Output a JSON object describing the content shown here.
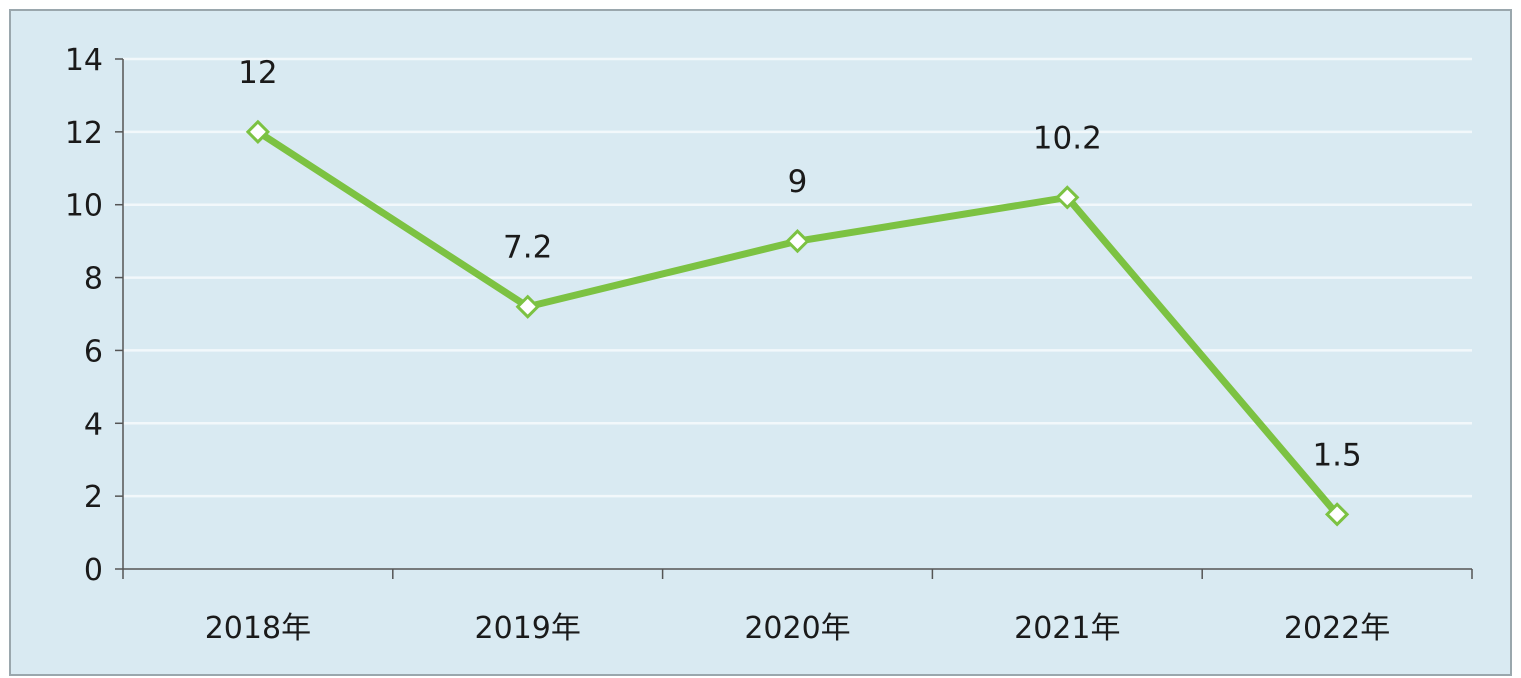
{
  "chart_data": {
    "type": "line",
    "categories": [
      "2018年",
      "2019年",
      "2020年",
      "2021年",
      "2022年"
    ],
    "series": [
      {
        "values": [
          12,
          7.2,
          9,
          10.2,
          1.5
        ],
        "data_labels": [
          "12",
          "7.2",
          "9",
          "10.2",
          "1.5"
        ],
        "color": "#7cc242"
      }
    ],
    "y_ticks": [
      "0",
      "2",
      "4",
      "6",
      "8",
      "10",
      "12",
      "14"
    ],
    "ylim": [
      0,
      14
    ],
    "grid": true,
    "legend": "none",
    "colors": {
      "background": "#d9eaf2",
      "gridline": "#f2f8fb",
      "line": "#7cc242",
      "marker_fill": "#ffffff",
      "axis": "#555555"
    }
  }
}
